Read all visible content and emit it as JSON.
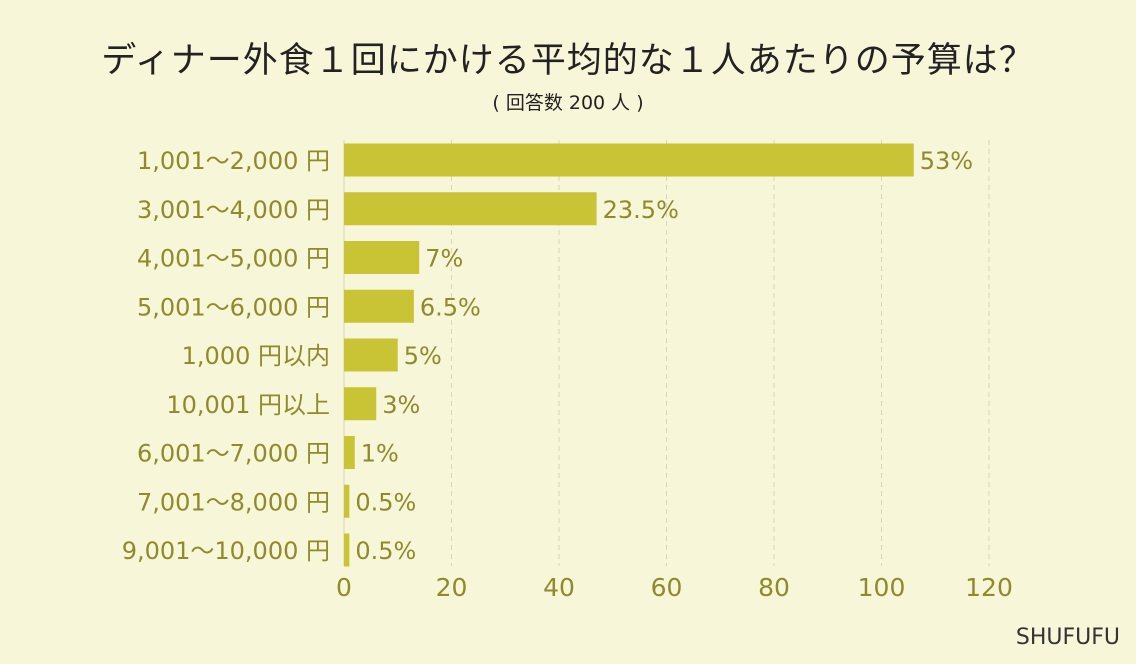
{
  "title": "ディナー外食１回にかける平均的な１人あたりの予算は？",
  "subtitle": "( 回答数 200 人 )",
  "brand": "SHUFUFU",
  "colors": {
    "bar": "#c9c435",
    "text": "#8f8a2a",
    "grid": "#d9d6b4",
    "background": "#f8f6d9"
  },
  "chart_data": {
    "type": "bar",
    "orientation": "horizontal",
    "categories": [
      "1,001〜2,000 円",
      "3,001〜4,000 円",
      "4,001〜5,000 円",
      "5,001〜6,000 円",
      "1,000 円以内",
      "10,001 円以上",
      "6,001〜7,000 円",
      "7,001〜8,000 円",
      "9,001〜10,000 円"
    ],
    "values": [
      106,
      47,
      14,
      13,
      10,
      6,
      2,
      1,
      1
    ],
    "labels": [
      "53%",
      "23.5%",
      "7%",
      "6.5%",
      "5%",
      "3%",
      "1%",
      "0.5%",
      "0.5%"
    ],
    "xlim": [
      0,
      120
    ],
    "xticks": [
      0,
      20,
      40,
      60,
      80,
      100,
      120
    ],
    "grid": true
  }
}
